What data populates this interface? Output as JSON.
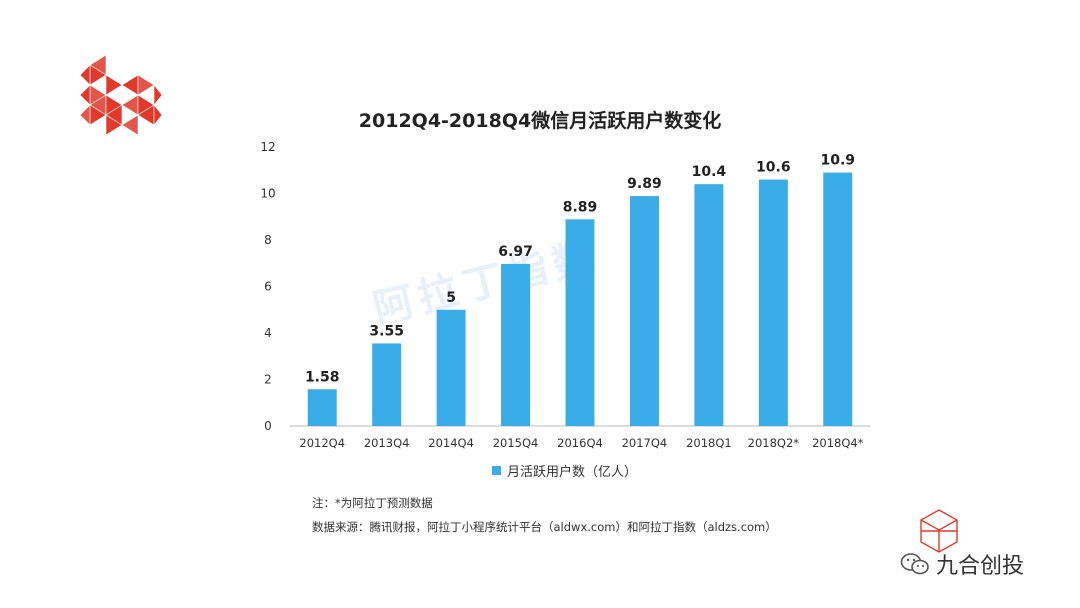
{
  "colors": {
    "bar": "#3aace8",
    "logo": "#e1392b",
    "axis": "#bbbbbb"
  },
  "watermark_text": "阿拉丁指数",
  "brand_text": "九合创投",
  "brand_icon": "wechat-icon",
  "notes": {
    "line1": "注：*为阿拉丁预测数据",
    "line2": "数据来源：腾讯财报，阿拉丁小程序统计平台（aldwx.com）和阿拉丁指数（aldzs.com）"
  },
  "chart_data": {
    "type": "bar",
    "title": "2012Q4-2018Q4微信月活跃用户数变化",
    "categories": [
      "2012Q4",
      "2013Q4",
      "2014Q4",
      "2015Q4",
      "2016Q4",
      "2017Q4",
      "2018Q1",
      "2018Q2*",
      "2018Q4*"
    ],
    "series": [
      {
        "name": "月活跃用户数（亿人）",
        "values": [
          1.58,
          3.55,
          5,
          6.97,
          8.89,
          9.89,
          10.4,
          10.6,
          10.9
        ]
      }
    ],
    "value_labels": [
      "1.58",
      "3.55",
      "5",
      "6.97",
      "8.89",
      "9.89",
      "10.4",
      "10.6",
      "10.9"
    ],
    "ylim": [
      0,
      12
    ],
    "yticks": [
      0,
      2,
      4,
      6,
      8,
      10,
      12
    ],
    "legend_position": "bottom",
    "grid": false
  }
}
